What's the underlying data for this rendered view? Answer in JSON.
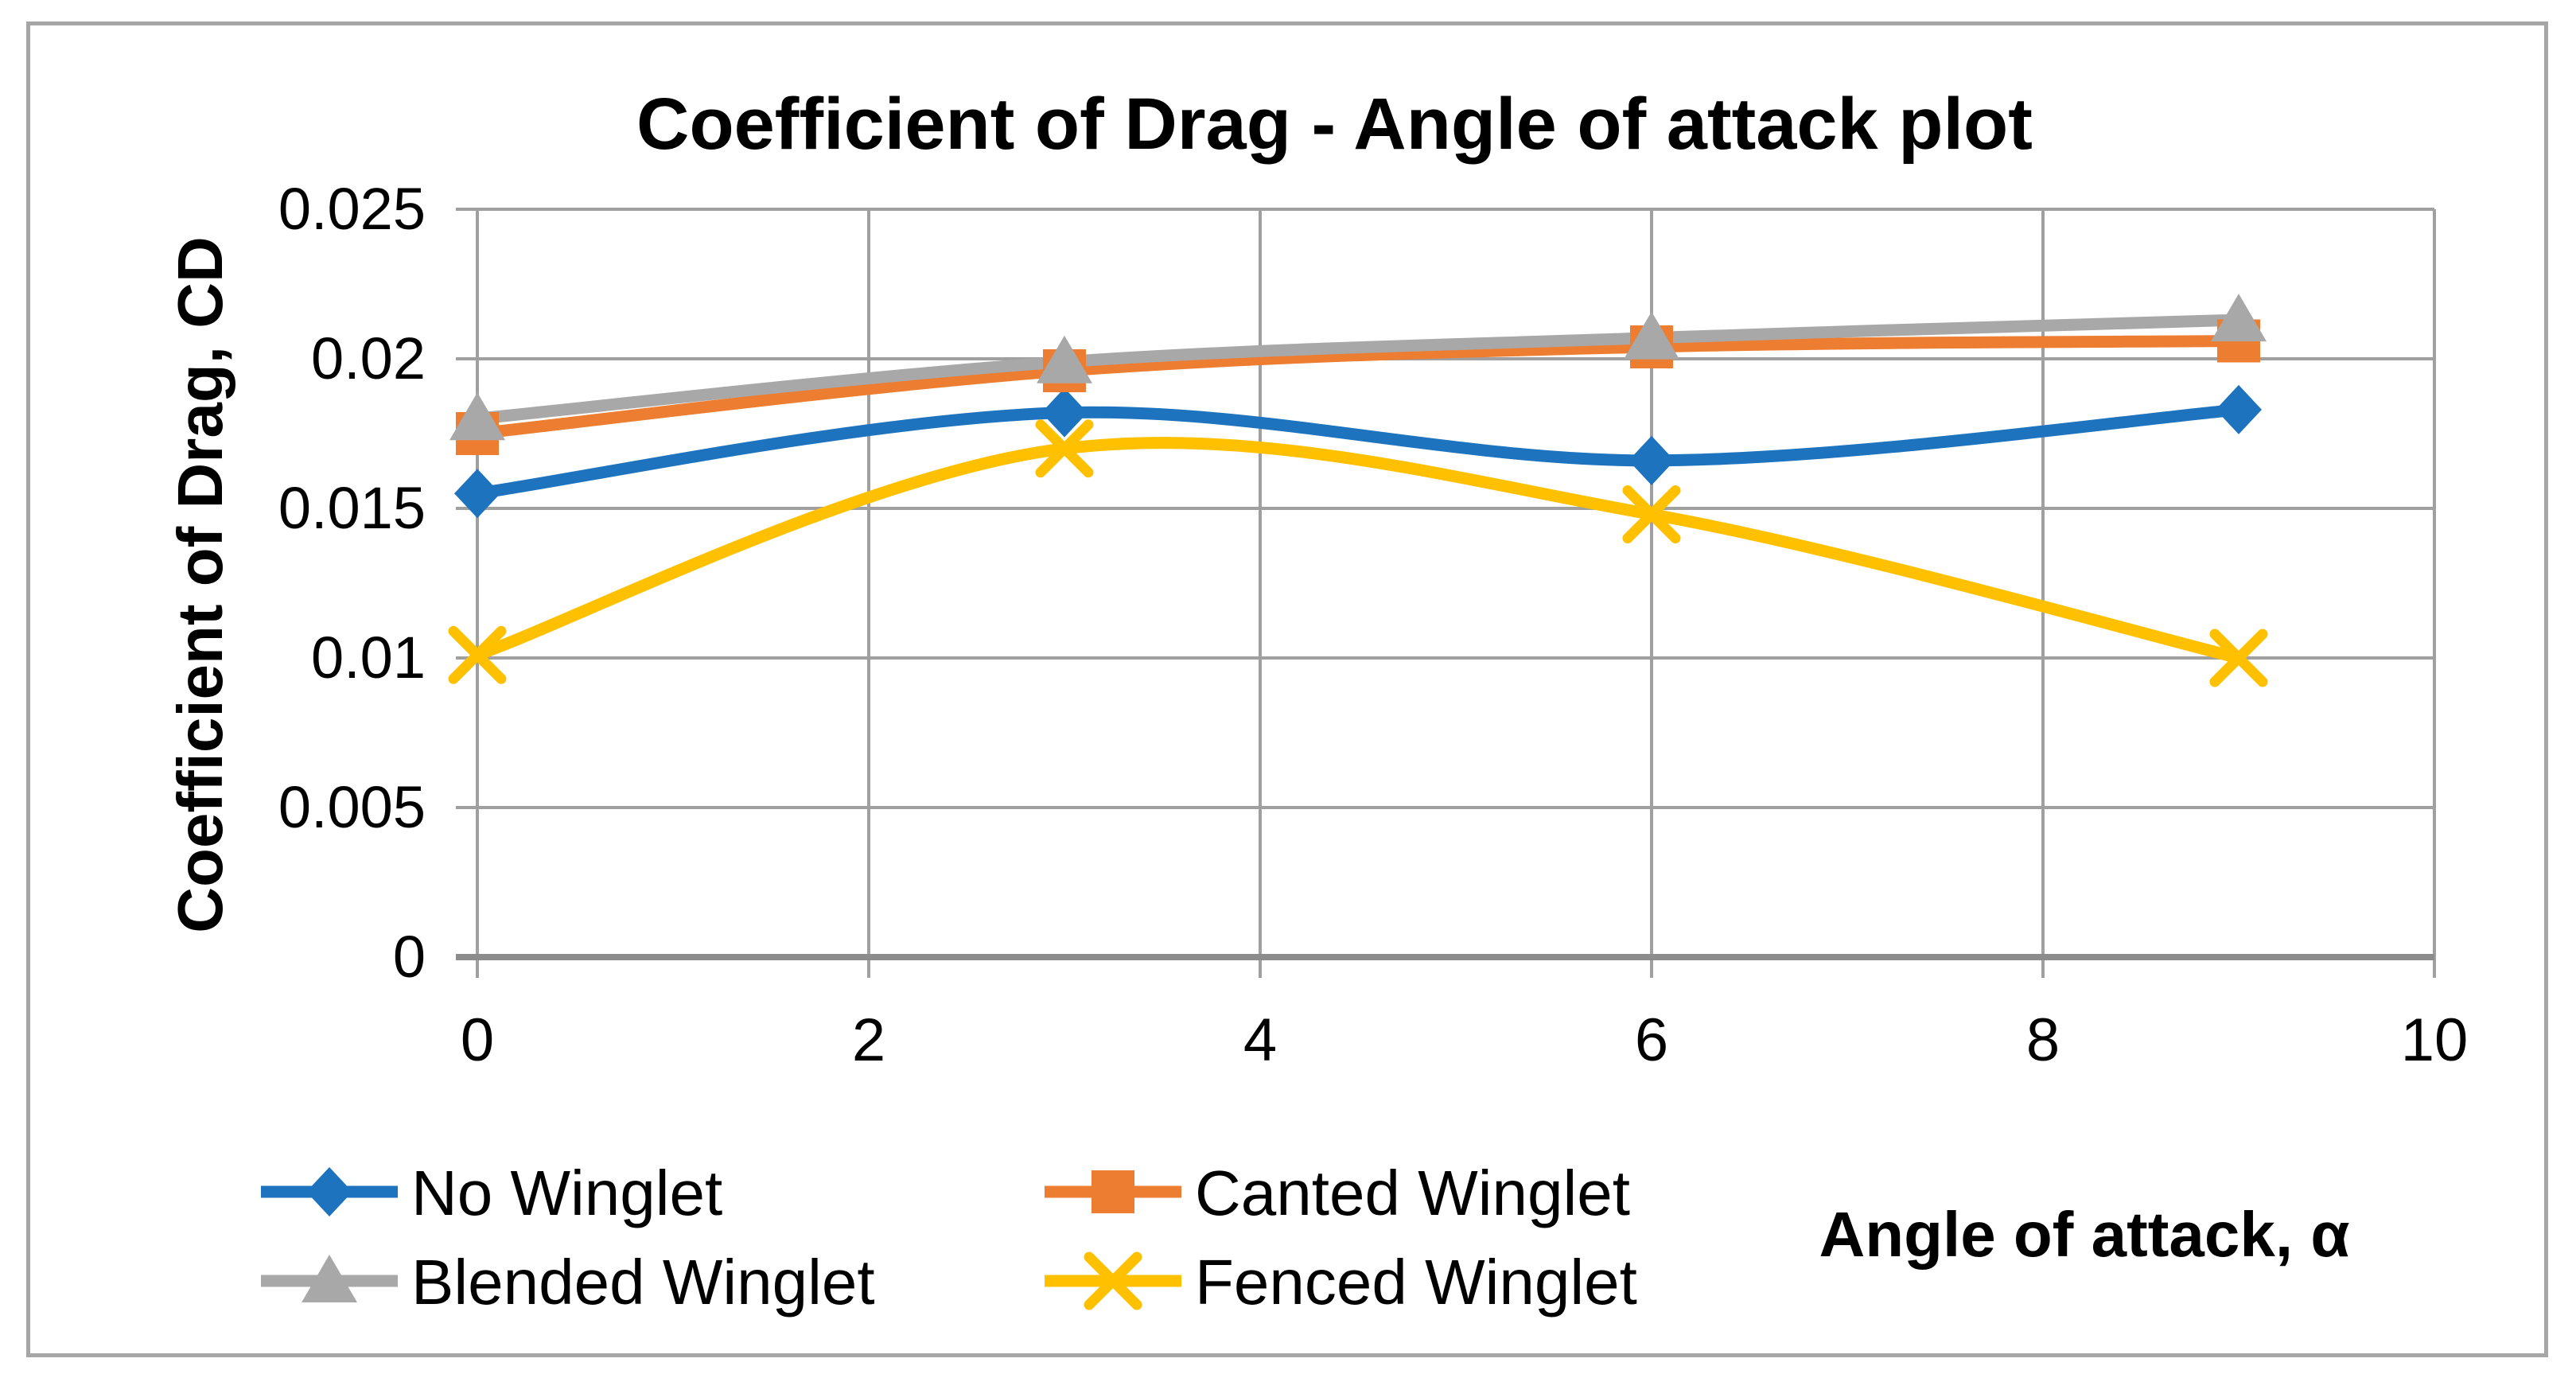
{
  "page": {
    "background": "#FFFFFF",
    "border_color": "#A6A6A6"
  },
  "chart": {
    "title": "Coefficient of Drag - Angle of attack plot",
    "y_axis_title": "Coefficient of Drag, CD",
    "x_axis_title": "Angle of attack, α",
    "y_tick_labels": [
      "0",
      "0.005",
      "0.01",
      "0.015",
      "0.02",
      "0.025"
    ],
    "x_tick_labels": [
      "0",
      "2",
      "4",
      "6",
      "8",
      "10"
    ],
    "grid_color": "#A0A0A0",
    "axis_color": "#8C8C8C",
    "text_color": "#000000"
  },
  "chart_data": {
    "type": "line",
    "smooth": true,
    "x": [
      0,
      3,
      6,
      9
    ],
    "series": [
      {
        "name": "No Winglet",
        "marker": "diamond",
        "color": "#1E73BE",
        "values": [
          0.0155,
          0.0182,
          0.0166,
          0.0183
        ]
      },
      {
        "name": "Canted Winglet",
        "marker": "square",
        "color": "#ED7D31",
        "values": [
          0.0175,
          0.0196,
          0.0204,
          0.0206
        ]
      },
      {
        "name": "Blended Winglet",
        "marker": "triangle",
        "color": "#A8A8A8",
        "values": [
          0.018,
          0.0199,
          0.0207,
          0.0213
        ]
      },
      {
        "name": "Fenced Winglet",
        "marker": "x",
        "color": "#FFC000",
        "values": [
          0.0101,
          0.017,
          0.0148,
          0.01
        ]
      }
    ],
    "title": "Coefficient of Drag - Angle of attack plot",
    "xlabel": "Angle of attack, α",
    "ylabel": "Coefficient of Drag, CD",
    "xlim": [
      0,
      10
    ],
    "ylim": [
      0,
      0.025
    ],
    "x_ticks": [
      0,
      2,
      4,
      6,
      8,
      10
    ],
    "y_ticks": [
      0,
      0.005,
      0.01,
      0.015,
      0.02,
      0.025
    ],
    "grid": true,
    "legend_position": "bottom"
  }
}
